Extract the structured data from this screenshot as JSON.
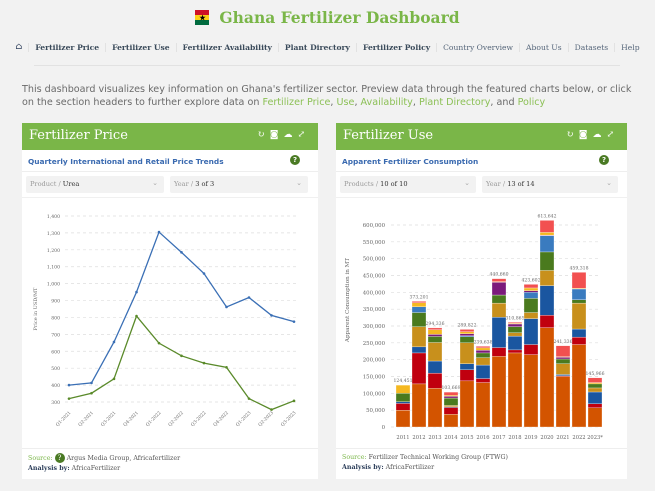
{
  "header": {
    "title": "Ghana Fertilizer Dashboard",
    "flag_icon": "ghana-flag"
  },
  "nav": {
    "items": [
      "Fertilizer Price",
      "Fertilizer Use",
      "Fertilizer Availability",
      "Plant Directory",
      "Fertilizer Policy",
      "Country Overview",
      "About Us",
      "Datasets",
      "Help"
    ]
  },
  "intro": {
    "text1": "This dashboard visualizes key information on Ghana's fertilizer sector. Preview data through the featured charts below, or click on the section headers to further explore data on ",
    "links": [
      "Fertilizer Price",
      "Use",
      "Availability",
      "Plant Directory",
      "Policy"
    ],
    "sep1": ", ",
    "sep_and": ", and "
  },
  "price_panel": {
    "title": "Fertilizer Price",
    "subtitle": "Quarterly International and Retail Price Trends",
    "help": "?",
    "product_label": "Product / ",
    "product_value": "Urea",
    "year_label": "Year / ",
    "year_value": "3 of 3",
    "source_label": "Source:",
    "source": "Argus Media Group, Africafertilizer",
    "analysis_label": "Analysis by:",
    "analysis": "AfricaFertilizer"
  },
  "use_panel": {
    "title": "Fertilizer Use",
    "subtitle": "Apparent Fertilizer Consumption",
    "help": "?",
    "product_label": "Products / ",
    "product_value": "10 of 10",
    "year_label": "Year / ",
    "year_value": "13 of 14",
    "source_label": "Source:",
    "source": "Fertilizer Technical Working Group (FTWG)",
    "analysis_label": "Analysis by:",
    "analysis": "AfricaFertilizer"
  },
  "panel_icons": [
    "refresh-icon",
    "camera-icon",
    "download-cloud-icon",
    "expand-icon"
  ],
  "chart_data": [
    {
      "type": "line",
      "ylabel": "Price in USD/MT",
      "ylim": [
        300,
        1400
      ],
      "yticks": [
        300,
        400,
        500,
        600,
        700,
        800,
        900,
        1000,
        1100,
        1200,
        1300,
        1400
      ],
      "ytick_labels": [
        "300",
        "400",
        "500",
        "600",
        "700",
        "800",
        "900",
        "1,000",
        "1,100",
        "1,200",
        "1,300",
        "1,400"
      ],
      "grid": true,
      "x": [
        "Q1-2021",
        "Q2-2021",
        "Q3-2021",
        "Q4-2021",
        "Q1-2022",
        "Q2-2022",
        "Q3-2022",
        "Q4-2022",
        "Q1-2023",
        "Q2-2023",
        "Q3-2023"
      ],
      "series": [
        {
          "color": "#3a6fb5",
          "values": [
            400,
            413,
            655,
            950,
            1305,
            1185,
            1060,
            862,
            918,
            812,
            775
          ]
        },
        {
          "color": "#5a8a2a",
          "values": [
            320,
            352,
            437,
            808,
            648,
            573,
            530,
            505,
            320,
            255,
            307
          ]
        }
      ]
    },
    {
      "type": "stacked-bar",
      "ylabel": "Apparent Consumption in MT",
      "ylim": [
        0,
        600000
      ],
      "yticks": [
        0,
        50000,
        100000,
        150000,
        200000,
        250000,
        300000,
        350000,
        400000,
        450000,
        500000,
        550000,
        600000
      ],
      "ytick_labels": [
        "0",
        "50,000",
        "100,000",
        "150,000",
        "200,000",
        "250,000",
        "300,000",
        "350,000",
        "400,000",
        "450,000",
        "500,000",
        "550,000",
        "600,000"
      ],
      "grid": true,
      "categories": [
        "2011",
        "2012",
        "2013",
        "2014",
        "2015",
        "2016",
        "2017",
        "2018",
        "2019",
        "2020",
        "2021",
        "2022",
        "2023*"
      ],
      "totals": [
        124451,
        373201,
        294336,
        103669,
        289822,
        239638,
        440660,
        310865,
        423602,
        613642,
        241336,
        459318,
        145966
      ],
      "total_labels": [
        "124,451",
        "373,201",
        "294,336",
        "103,669",
        "289,822",
        "239,638",
        "440,660",
        "310,865",
        "423,602",
        "613,642",
        "241,336",
        "459,318",
        "145,966"
      ],
      "series": [
        {
          "color": "#d35400",
          "values": [
            50000,
            128000,
            115000,
            38000,
            137000,
            132000,
            210000,
            220000,
            215000,
            295000,
            150000,
            245000,
            57000
          ]
        },
        {
          "color": "#c0000f",
          "values": [
            20000,
            92000,
            45000,
            20000,
            33000,
            12000,
            26000,
            9000,
            30000,
            37000,
            2000,
            22000,
            12000
          ]
        },
        {
          "color": "#1a56a0",
          "values": [
            5000,
            18000,
            36000,
            2000,
            18000,
            40000,
            90000,
            41000,
            77000,
            88000,
            4000,
            24000,
            35000
          ]
        },
        {
          "color": "#c8901c",
          "values": [
            0,
            60000,
            55000,
            4000,
            62000,
            22000,
            42000,
            10000,
            18000,
            45000,
            32000,
            77000,
            12000
          ]
        },
        {
          "color": "#4a7a1e",
          "values": [
            25000,
            42000,
            18000,
            22000,
            18000,
            14000,
            24000,
            18000,
            42000,
            55000,
            14000,
            10000,
            12000
          ]
        },
        {
          "color": "#3a7bbf",
          "values": [
            0,
            17000,
            0,
            0,
            3000,
            0,
            0,
            0,
            18000,
            48000,
            0,
            32000,
            0
          ]
        },
        {
          "color": "#7b1a7b",
          "values": [
            0,
            0,
            6000,
            5000,
            6000,
            8000,
            38000,
            8000,
            5000,
            2000,
            5000,
            0,
            0
          ]
        },
        {
          "color": "#f5b820",
          "values": [
            24451,
            12000,
            14000,
            3000,
            6000,
            7000,
            2000,
            2000,
            8000,
            8000,
            2000,
            2000,
            4000
          ]
        },
        {
          "color": "#f25050",
          "values": [
            0,
            4201,
            5336,
            9669,
            6822,
            4638,
            8660,
            2865,
            10602,
            35642,
            32336,
            47318,
            13966
          ]
        }
      ]
    }
  ]
}
